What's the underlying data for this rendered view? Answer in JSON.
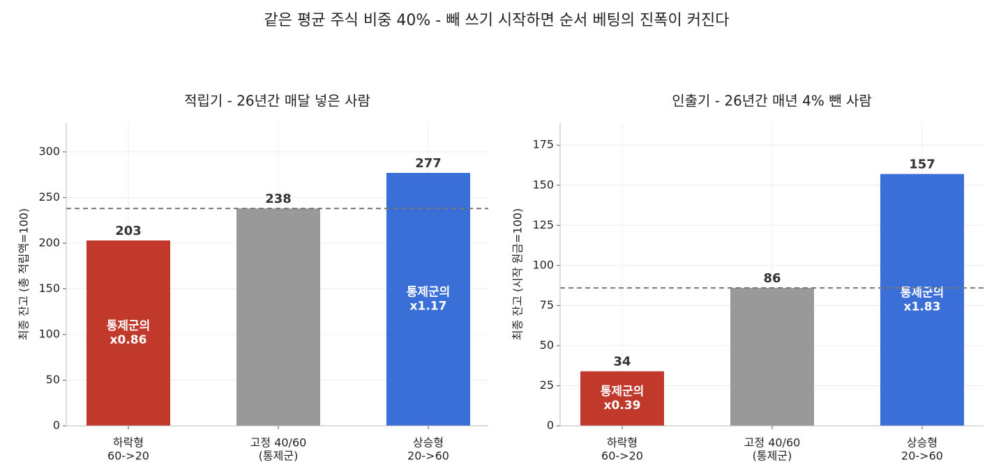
{
  "title": "같은 평균 주식 비중 40% - 빼 쓰기 시작하면 순서 베팅의 진폭이 커진다",
  "chart_data": [
    {
      "type": "bar",
      "title": "적립기 - 26년간 매달 넣은 사람",
      "ylabel": "최종 잔고 (총 적립액=100)",
      "categories": [
        [
          "하락형",
          "60->20"
        ],
        [
          "고정 40/60",
          "(통제군)"
        ],
        [
          "상승형",
          "20->60"
        ]
      ],
      "values": [
        203,
        238,
        277
      ],
      "colors": [
        "#c0392b",
        "#999999",
        "#3a6fd8"
      ],
      "ratio_labels": [
        [
          "통제군의",
          "x0.86"
        ],
        null,
        [
          "통제군의",
          "x1.17"
        ]
      ],
      "reference": 238,
      "ylim": [
        0,
        332
      ],
      "yticks": [
        0,
        50,
        100,
        150,
        200,
        250,
        300
      ],
      "grid": true
    },
    {
      "type": "bar",
      "title": "인출기 - 26년간 매년 4% 뺀 사람",
      "ylabel": "최종 잔고 (시작 원금=100)",
      "categories": [
        [
          "하락형",
          "60->20"
        ],
        [
          "고정 40/60",
          "(통제군)"
        ],
        [
          "상승형",
          "20->60"
        ]
      ],
      "values": [
        34,
        86,
        157
      ],
      "colors": [
        "#c0392b",
        "#999999",
        "#3a6fd8"
      ],
      "ratio_labels": [
        [
          "통제군의",
          "x0.39"
        ],
        null,
        [
          "통제군의",
          "x1.83"
        ]
      ],
      "reference": 86,
      "ylim": [
        0,
        189
      ],
      "yticks": [
        0,
        25,
        50,
        75,
        100,
        125,
        150,
        175
      ],
      "grid": true
    }
  ]
}
